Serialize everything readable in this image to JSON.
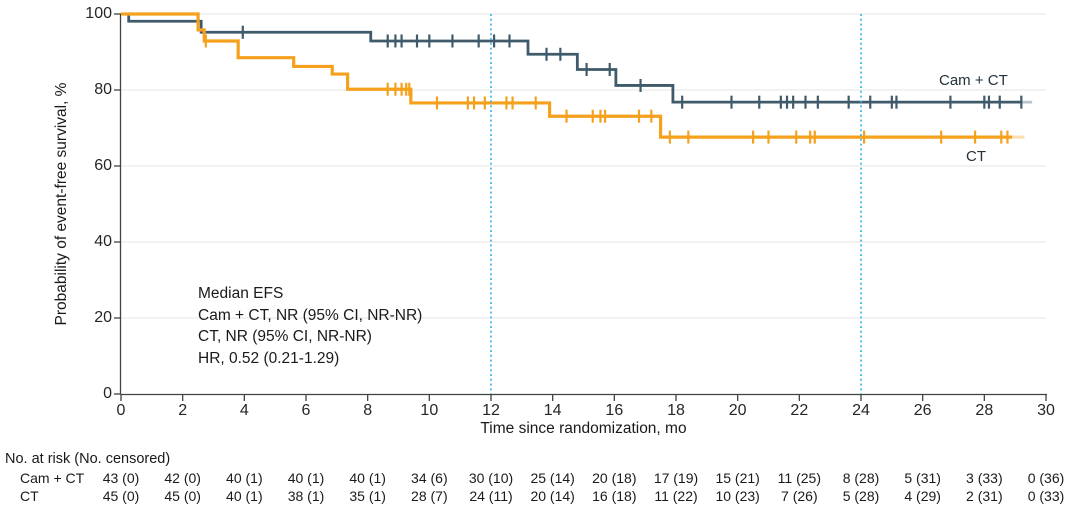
{
  "chart_data": {
    "type": "line",
    "subtype": "kaplan-meier-step",
    "title": "",
    "xlabel": "Time since randomization, mo",
    "ylabel": "Probability of event-free survival, %",
    "xlim": [
      0,
      30
    ],
    "ylim": [
      0,
      100
    ],
    "xticks": [
      0,
      2,
      4,
      6,
      8,
      10,
      12,
      14,
      16,
      18,
      20,
      22,
      24,
      26,
      28,
      30
    ],
    "yticks": [
      0,
      20,
      40,
      60,
      80,
      100
    ],
    "grid": "horizontal",
    "gridline_color": "#ebebeb",
    "axis_color": "#424242",
    "reference_lines": {
      "x": [
        12,
        24
      ],
      "color": "#48bae9",
      "style": "dotted"
    },
    "legend_position": "end-of-line-labels",
    "series": [
      {
        "name": "Cam + CT",
        "color": "#3f5a6a",
        "steps": [
          [
            0,
            100
          ],
          [
            0.25,
            98.1
          ],
          [
            2.6,
            95.2
          ],
          [
            8.1,
            92.9
          ],
          [
            13.2,
            89.4
          ],
          [
            14.8,
            85.4
          ],
          [
            16.05,
            81.2
          ],
          [
            17.9,
            76.8
          ]
        ],
        "end_solid": 29.2,
        "end_fade": 29.55,
        "censor_times": [
          3.95,
          8.65,
          8.9,
          9.1,
          9.6,
          10.0,
          10.75,
          11.6,
          12.1,
          12.6,
          13.8,
          14.25,
          15.1,
          15.85,
          16.85,
          18.2,
          19.8,
          20.7,
          21.4,
          21.6,
          21.8,
          22.2,
          22.6,
          23.6,
          24.3,
          25.0,
          25.15,
          26.9,
          28.0,
          28.15,
          28.5,
          29.2
        ]
      },
      {
        "name": "CT",
        "color": "#f5a11d",
        "steps": [
          [
            0,
            100
          ],
          [
            2.5,
            95.8
          ],
          [
            2.7,
            92.9
          ],
          [
            3.8,
            88.5
          ],
          [
            5.6,
            86.2
          ],
          [
            6.85,
            84.2
          ],
          [
            7.35,
            80.2
          ],
          [
            9.4,
            76.6
          ],
          [
            13.9,
            73.1
          ],
          [
            17.5,
            67.6
          ]
        ],
        "end_solid": 28.9,
        "end_fade": 29.3,
        "censor_times": [
          2.75,
          8.65,
          8.9,
          9.1,
          9.25,
          9.35,
          10.25,
          11.25,
          11.45,
          11.8,
          12.5,
          12.7,
          13.45,
          14.45,
          15.3,
          15.55,
          15.7,
          16.8,
          17.2,
          17.8,
          18.4,
          20.5,
          21.0,
          21.9,
          22.35,
          22.5,
          24.1,
          26.6,
          27.7,
          28.55,
          28.75
        ]
      }
    ],
    "annotation": [
      "Median EFS",
      "Cam + CT, NR (95% CI, NR-NR)",
      "CT, NR (95% CI, NR-NR)",
      "HR, 0.52 (0.21-1.29)"
    ]
  },
  "risk_table": {
    "header": "No. at risk (No. censored)",
    "months": [
      0,
      2,
      4,
      6,
      8,
      10,
      12,
      14,
      16,
      18,
      20,
      22,
      24,
      26,
      28,
      30
    ],
    "rows": [
      {
        "label": "Cam + CT",
        "values": [
          "43 (0)",
          "42 (0)",
          "40 (1)",
          "40 (1)",
          "40 (1)",
          "34 (6)",
          "30 (10)",
          "25 (14)",
          "20 (18)",
          "17 (19)",
          "15 (21)",
          "11 (25)",
          "8 (28)",
          "5 (31)",
          "3 (33)",
          "0 (36)"
        ]
      },
      {
        "label": "CT",
        "values": [
          "45 (0)",
          "45 (0)",
          "40 (1)",
          "38 (1)",
          "35 (1)",
          "28 (7)",
          "24 (11)",
          "20 (14)",
          "16 (18)",
          "11 (22)",
          "10 (23)",
          "7 (26)",
          "5 (28)",
          "4 (29)",
          "2 (31)",
          "0 (33)"
        ]
      }
    ]
  }
}
